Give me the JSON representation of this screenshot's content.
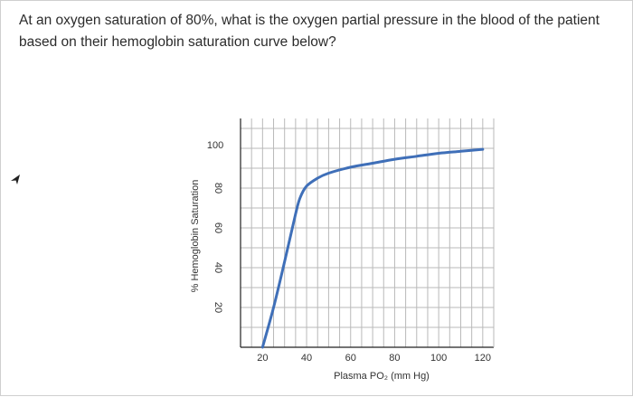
{
  "question": {
    "text": "At an oxygen saturation of 80%, what is the oxygen partial pressure in the blood of the patient based on their hemoglobin saturation curve below?"
  },
  "icons": {
    "cursor": "cursor-arrow-icon"
  },
  "colors": {
    "curve": "#3f6fb8",
    "grid": "#b9b9b9",
    "axis": "#222222"
  },
  "chart_data": {
    "type": "line",
    "title": "",
    "xlabel": "Plasma PO₂ (mm Hg)",
    "ylabel": "% Hemoglobin Saturation",
    "xlim": [
      10,
      125
    ],
    "ylim": [
      0,
      115
    ],
    "x_ticks": [
      "20",
      "40",
      "60",
      "80",
      "100",
      "120"
    ],
    "y_ticks": [
      "20",
      "40",
      "60",
      "80",
      "100"
    ],
    "grid": true,
    "series": [
      {
        "name": "",
        "x": [
          20,
          25,
          30,
          35,
          37,
          40,
          45,
          50,
          60,
          70,
          80,
          90,
          100,
          110,
          120
        ],
        "y": [
          0,
          20,
          43,
          67,
          75,
          81,
          85,
          87.5,
          90.5,
          92.5,
          94.5,
          96,
          97.5,
          98.5,
          99.5
        ]
      }
    ]
  }
}
